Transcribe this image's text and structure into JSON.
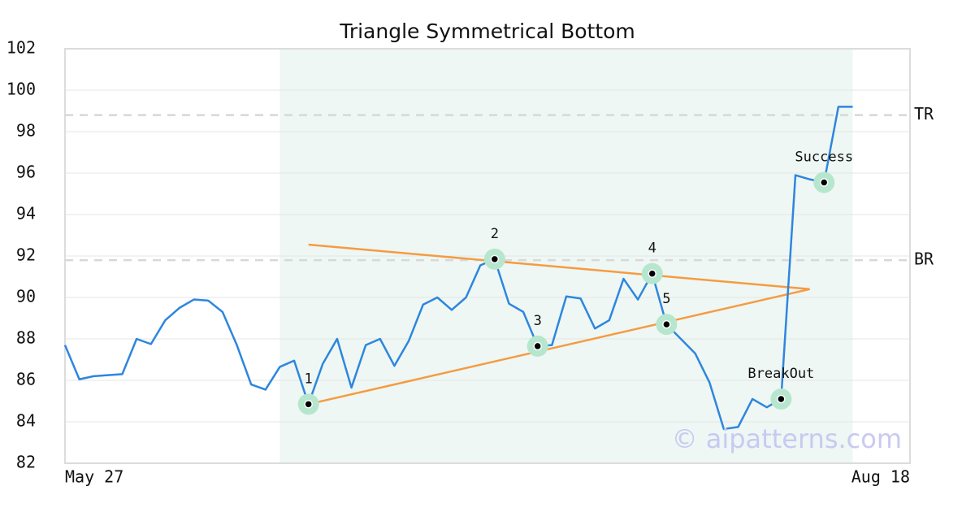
{
  "chart_data": {
    "type": "line",
    "title": "Triangle Symmetrical Bottom",
    "x": [
      0,
      1,
      2,
      3,
      4,
      5,
      6,
      7,
      8,
      9,
      10,
      11,
      12,
      13,
      14,
      15,
      16,
      17,
      18,
      19,
      20,
      21,
      22,
      23,
      24,
      25,
      26,
      27,
      28,
      29,
      30,
      31,
      32,
      33,
      34,
      35,
      36,
      37,
      38,
      39,
      40,
      41,
      42,
      43,
      44,
      45,
      46,
      47,
      48,
      49,
      50,
      51,
      52,
      53,
      54,
      55
    ],
    "series": [
      {
        "color": "#2e86de",
        "values": [
          87.7,
          86.05,
          86.2,
          86.25,
          86.3,
          88.0,
          87.75,
          88.9,
          89.5,
          89.9,
          89.85,
          89.3,
          87.7,
          85.8,
          85.55,
          86.65,
          86.95,
          84.85,
          86.8,
          88.0,
          85.65,
          87.7,
          88.0,
          86.7,
          87.9,
          89.65,
          90.0,
          89.4,
          90.0,
          91.55,
          91.85,
          89.7,
          89.3,
          87.65,
          87.7,
          90.05,
          89.95,
          88.5,
          88.9,
          90.9,
          89.9,
          91.15,
          88.7,
          88.0,
          87.3,
          85.9,
          83.65,
          83.75,
          85.1,
          84.7,
          85.1,
          95.9,
          95.7,
          95.55,
          99.2,
          99.2
        ]
      }
    ],
    "xlim": [
      0,
      59
    ],
    "xticks": [
      {
        "value": 0,
        "label": "May 27"
      },
      {
        "value": 59,
        "label": "Aug 18"
      }
    ],
    "ylim": [
      82,
      102
    ],
    "yticks": [
      82,
      84,
      86,
      88,
      90,
      92,
      94,
      96,
      98,
      100,
      102
    ],
    "grid": true,
    "region": {
      "x": [
        15,
        55
      ],
      "color": "#eef7f3"
    },
    "levels": [
      {
        "label": "TR",
        "value": 98.8
      },
      {
        "label": "BR",
        "value": 91.8
      }
    ],
    "trend_lines": [
      {
        "x": [
          17,
          52
        ],
        "values": [
          92.55,
          90.4
        ],
        "color": "#f59b42"
      },
      {
        "x": [
          17,
          52
        ],
        "values": [
          84.85,
          90.4
        ],
        "color": "#f59b42"
      }
    ],
    "annotations": [
      {
        "label": "1",
        "x": 17,
        "value": 84.85
      },
      {
        "label": "2",
        "x": 30,
        "value": 91.85
      },
      {
        "label": "3",
        "x": 33,
        "value": 87.65
      },
      {
        "label": "4",
        "x": 41,
        "value": 91.15
      },
      {
        "label": "5",
        "x": 42,
        "value": 88.7
      },
      {
        "label": "BreakOut",
        "x": 50,
        "value": 85.1
      },
      {
        "label": "Success",
        "x": 53,
        "value": 95.55
      }
    ],
    "watermark": "© aipatterns.com"
  }
}
